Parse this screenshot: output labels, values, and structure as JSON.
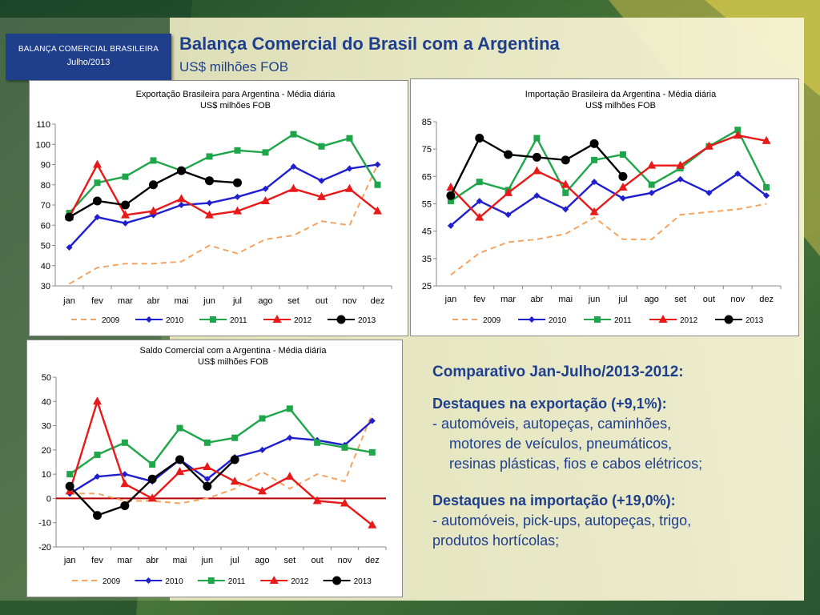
{
  "badge": {
    "line1": "BALANÇA COMERCIAL BRASILEIRA",
    "line2": "Julho/2013"
  },
  "header": {
    "title": "Balança Comercial do Brasil com a Argentina",
    "subtitle": "US$ milhões FOB"
  },
  "colors": {
    "2009": "#f4a460",
    "2010": "#1f1fcf",
    "2011": "#1fa64a",
    "2012": "#e81919",
    "2013": "#000000",
    "zeroline": "#b80000"
  },
  "chart_data": [
    {
      "type": "line",
      "title": "Exportação Brasileira para Argentina - Média diária",
      "subtitle": "US$ milhões FOB",
      "categories": [
        "jan",
        "fev",
        "mar",
        "abr",
        "mai",
        "jun",
        "jul",
        "ago",
        "set",
        "out",
        "nov",
        "dez"
      ],
      "ylim": [
        30,
        110
      ],
      "yticks": [
        30,
        40,
        50,
        60,
        70,
        80,
        90,
        100,
        110
      ],
      "grid": false,
      "legend": "bottom",
      "series": [
        {
          "name": "2009",
          "values": [
            31,
            39,
            41,
            41,
            42,
            50,
            46,
            53,
            55,
            62,
            60,
            90
          ]
        },
        {
          "name": "2010",
          "values": [
            49,
            64,
            61,
            65,
            70,
            71,
            74,
            78,
            89,
            82,
            88,
            90
          ]
        },
        {
          "name": "2011",
          "values": [
            66,
            81,
            84,
            92,
            87,
            94,
            97,
            96,
            105,
            99,
            103,
            80
          ]
        },
        {
          "name": "2012",
          "values": [
            64,
            90,
            65,
            67,
            73,
            65,
            67,
            72,
            78,
            74,
            78,
            67
          ]
        },
        {
          "name": "2013",
          "values": [
            64,
            72,
            70,
            80,
            87,
            82,
            81,
            null,
            null,
            null,
            null,
            null
          ]
        }
      ]
    },
    {
      "type": "line",
      "title": "Importação Brasileira da Argentina - Média diária",
      "subtitle": "US$ milhões FOB",
      "categories": [
        "jan",
        "fev",
        "mar",
        "abr",
        "mai",
        "jun",
        "jul",
        "ago",
        "set",
        "out",
        "nov",
        "dez"
      ],
      "ylim": [
        25,
        85
      ],
      "yticks": [
        25,
        35,
        45,
        55,
        65,
        75,
        85
      ],
      "grid": false,
      "legend": "bottom",
      "series": [
        {
          "name": "2009",
          "values": [
            29,
            37,
            41,
            42,
            44,
            50,
            42,
            42,
            51,
            52,
            53,
            55
          ]
        },
        {
          "name": "2010",
          "values": [
            47,
            56,
            51,
            58,
            53,
            63,
            57,
            59,
            64,
            59,
            66,
            58
          ]
        },
        {
          "name": "2011",
          "values": [
            56,
            63,
            60,
            79,
            59,
            71,
            73,
            62,
            68,
            76,
            82,
            61
          ]
        },
        {
          "name": "2012",
          "values": [
            61,
            50,
            59,
            67,
            62,
            52,
            61,
            69,
            69,
            76,
            80,
            78
          ]
        },
        {
          "name": "2013",
          "values": [
            58,
            79,
            73,
            72,
            71,
            77,
            65,
            null,
            null,
            null,
            null,
            null
          ]
        }
      ]
    },
    {
      "type": "line",
      "title": "Saldo Comercial com a Argentina - Média diária",
      "subtitle": "US$ milhões FOB",
      "categories": [
        "jan",
        "fev",
        "mar",
        "abr",
        "mai",
        "jun",
        "jul",
        "ago",
        "set",
        "out",
        "nov",
        "dez"
      ],
      "ylim": [
        -20,
        50
      ],
      "yticks": [
        -20,
        -10,
        0,
        10,
        20,
        30,
        40,
        50
      ],
      "grid": false,
      "legend": "bottom",
      "series": [
        {
          "name": "2009",
          "values": [
            2,
            2,
            -1,
            -1,
            -2,
            0,
            4,
            11,
            4,
            10,
            7,
            35
          ]
        },
        {
          "name": "2010",
          "values": [
            2,
            9,
            10,
            7,
            16,
            8,
            17,
            20,
            25,
            24,
            22,
            32
          ]
        },
        {
          "name": "2011",
          "values": [
            10,
            18,
            23,
            14,
            29,
            23,
            25,
            33,
            37,
            23,
            21,
            19
          ]
        },
        {
          "name": "2012",
          "values": [
            3,
            40,
            6,
            0,
            11,
            13,
            7,
            3,
            9,
            -1,
            -2,
            -11
          ]
        },
        {
          "name": "2013",
          "values": [
            5,
            -7,
            -3,
            8,
            16,
            5,
            16,
            null,
            null,
            null,
            null,
            null
          ]
        }
      ]
    }
  ],
  "text": {
    "heading": "Comparativo Jan-Julho/2013-2012:",
    "exp_head": "Destaques na exportação (+9,1%):",
    "exp_line1": "-  automóveis, autopeças, caminhões,",
    "exp_line2": "motores de veículos, pneumáticos,",
    "exp_line3": "resinas plásticas, fios e cabos elétricos;",
    "imp_head": "Destaques na importação (+19,0%):",
    "imp_line1": "- automóveis, pick-ups, autopeças, trigo,",
    "imp_line2": "produtos hortícolas;"
  }
}
